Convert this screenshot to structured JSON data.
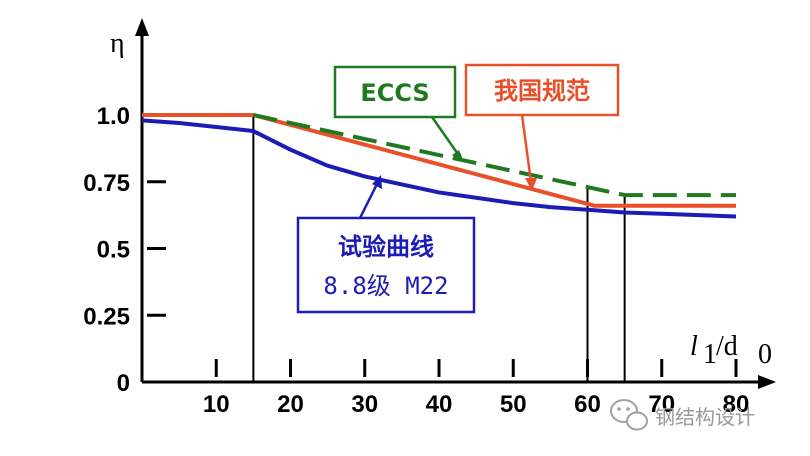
{
  "chart_data": {
    "type": "line",
    "x_axis_label": "l1/d0",
    "y_axis_label": "η",
    "xlim": [
      0,
      80
    ],
    "ylim": [
      0,
      1.0
    ],
    "x_ticks": [
      10,
      20,
      30,
      40,
      50,
      60,
      70,
      80
    ],
    "x_tick_labels": [
      "10",
      "20",
      "30",
      "40",
      "50",
      "60",
      "70",
      "80"
    ],
    "y_ticks": [
      0,
      0.25,
      0.5,
      0.75,
      1.0
    ],
    "y_tick_labels": [
      "0",
      "0.25",
      "0.5",
      "0.75",
      "1.0"
    ],
    "series": [
      {
        "name": "我国规范",
        "color": "#e8502a",
        "dash": "solid",
        "x": [
          0,
          15,
          61,
          80
        ],
        "y": [
          1.0,
          1.0,
          0.66,
          0.66
        ]
      },
      {
        "name": "ECCS",
        "color": "#1f7a1f",
        "dash": "dashed",
        "x": [
          15,
          65,
          80
        ],
        "y": [
          1.0,
          0.7,
          0.7
        ]
      },
      {
        "name": "试验曲线 8.8级 M22",
        "color": "#1c1cb4",
        "dash": "solid",
        "x": [
          0,
          5,
          10,
          15,
          20,
          25,
          30,
          35,
          40,
          45,
          50,
          55,
          60,
          65,
          70,
          75,
          80
        ],
        "y": [
          0.98,
          0.97,
          0.955,
          0.94,
          0.87,
          0.81,
          0.77,
          0.74,
          0.71,
          0.69,
          0.67,
          0.655,
          0.645,
          0.635,
          0.63,
          0.625,
          0.62
        ]
      }
    ],
    "reference_lines_x": [
      15,
      60,
      65
    ]
  },
  "labels": {
    "eccs": "ECCS",
    "china": "我国规范",
    "test_line1": "试验曲线",
    "test_line2": "8.8级 M22",
    "x_axis_l": "l",
    "x_axis_sub1": "1",
    "x_axis_slash_d": "/d",
    "x_axis_sub0": "0",
    "y_axis": "η"
  },
  "watermark": {
    "text": "钢结构设计",
    "icon": "wechat-icon"
  }
}
